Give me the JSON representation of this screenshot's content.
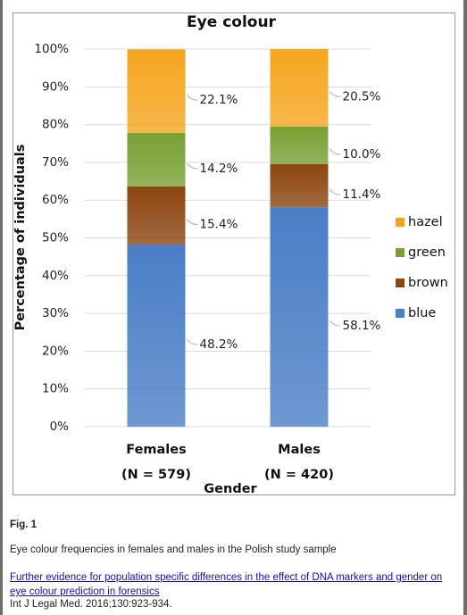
{
  "chart_data": {
    "type": "stacked_bar",
    "title": "Eye colour",
    "categories": [
      "Females",
      "Males"
    ],
    "category_sublabels": [
      "(N = 579)",
      "(N = 420)"
    ],
    "xlabel": "Gender",
    "ylabel": "Percentage of individuals",
    "ylim": [
      0,
      100
    ],
    "yticks": [
      {
        "value": 0,
        "label": "0%"
      },
      {
        "value": 10,
        "label": "10%"
      },
      {
        "value": 20,
        "label": "20%"
      },
      {
        "value": 30,
        "label": "30%"
      },
      {
        "value": 40,
        "label": "40%"
      },
      {
        "value": 50,
        "label": "50%"
      },
      {
        "value": 60,
        "label": "60%"
      },
      {
        "value": 70,
        "label": "70%"
      },
      {
        "value": 80,
        "label": "80%"
      },
      {
        "value": 90,
        "label": "90%"
      },
      {
        "value": 100,
        "label": "100%"
      }
    ],
    "grid": true,
    "legend": "right",
    "series": [
      {
        "name": "blue",
        "color": "#4a7ec6",
        "values": [
          48.2,
          58.1
        ],
        "value_labels": [
          "48.2%",
          "58.1%"
        ]
      },
      {
        "name": "brown",
        "color": "#8c4510",
        "values": [
          15.4,
          11.4
        ],
        "value_labels": [
          "15.4%",
          "11.4%"
        ]
      },
      {
        "name": "green",
        "color": "#78a032",
        "values": [
          14.2,
          10.0
        ],
        "value_labels": [
          "14.2%",
          "10.0%"
        ]
      },
      {
        "name": "hazel",
        "color": "#f5a51e",
        "values": [
          22.1,
          20.5
        ],
        "value_labels": [
          "22.1%",
          "20.5%"
        ]
      }
    ]
  },
  "figure": {
    "label": "Fig. 1",
    "caption": "Eye colour frequencies in females and males in the Polish study sample",
    "link": "Further evidence for population specific differences in the effect of DNA markers and gender on eye colour prediction in forensics",
    "citation": "Int J Legal Med. 2016;130:923-934."
  }
}
